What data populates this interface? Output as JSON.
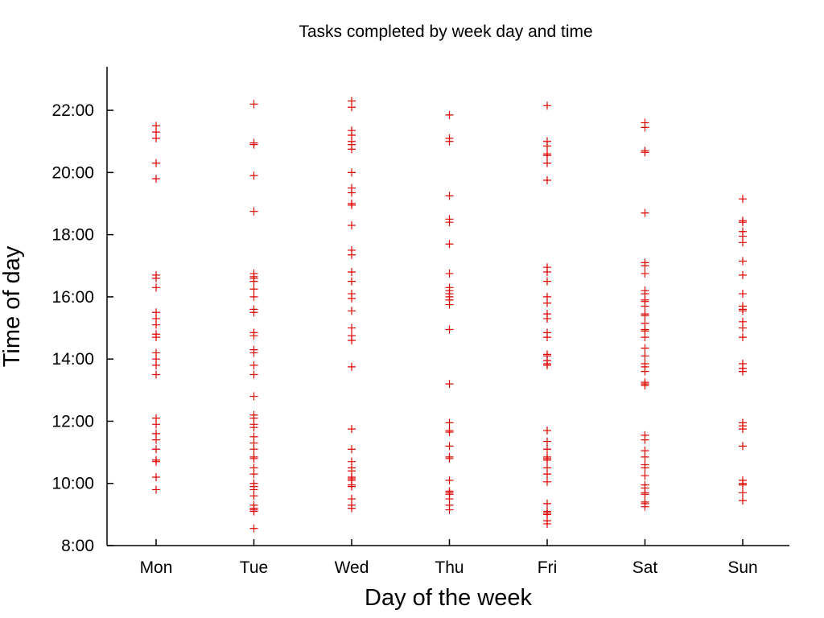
{
  "chart_data": {
    "type": "scatter",
    "title": "Tasks completed by week day and time",
    "xlabel": "Day of the week",
    "ylabel": "Time of day",
    "categories": [
      "Mon",
      "Tue",
      "Wed",
      "Thu",
      "Fri",
      "Sat",
      "Sun"
    ],
    "ylim": [
      8,
      23.4
    ],
    "y_ticks": [
      8,
      10,
      12,
      14,
      16,
      18,
      20,
      22
    ],
    "y_tick_labels": [
      "8:00",
      "10:00",
      "12:00",
      "14:00",
      "16:00",
      "18:00",
      "20:00",
      "22:00"
    ],
    "grid": false,
    "marker": "plus",
    "color": "#e00000",
    "points": [
      {
        "day": "Mon",
        "times": [
          21.5,
          21.3,
          21.1,
          20.3,
          19.8,
          16.7,
          16.6,
          16.3,
          15.5,
          15.3,
          15.1,
          14.8,
          14.7,
          14.2,
          14.0,
          13.8,
          13.5,
          12.1,
          11.9,
          11.6,
          11.4,
          11.1,
          10.75,
          10.7,
          10.2,
          9.8
        ]
      },
      {
        "day": "Tue",
        "times": [
          22.2,
          20.95,
          20.9,
          19.9,
          18.75,
          16.75,
          16.65,
          16.6,
          16.5,
          16.25,
          16.0,
          15.6,
          15.5,
          14.85,
          14.75,
          14.3,
          14.2,
          13.8,
          13.5,
          12.8,
          12.2,
          12.1,
          11.9,
          11.8,
          11.5,
          11.3,
          11.1,
          10.85,
          10.8,
          10.5,
          10.3,
          10.0,
          9.9,
          9.8,
          9.6,
          9.3,
          9.2,
          9.15,
          9.1,
          8.55
        ]
      },
      {
        "day": "Wed",
        "times": [
          22.3,
          22.1,
          21.35,
          21.2,
          21.0,
          20.9,
          20.75,
          20.0,
          19.5,
          19.35,
          19.0,
          18.95,
          18.3,
          17.5,
          17.35,
          16.8,
          16.5,
          16.1,
          15.95,
          15.55,
          15.0,
          14.75,
          14.6,
          13.75,
          11.75,
          11.1,
          10.7,
          10.5,
          10.4,
          10.2,
          10.15,
          10.1,
          9.95,
          9.9,
          9.5,
          9.3,
          9.2
        ]
      },
      {
        "day": "Thu",
        "times": [
          21.85,
          21.1,
          21.0,
          19.25,
          18.5,
          18.4,
          17.7,
          16.75,
          16.3,
          16.2,
          16.1,
          16.0,
          15.9,
          15.75,
          14.95,
          13.2,
          11.95,
          11.7,
          11.65,
          11.2,
          10.85,
          10.8,
          10.1,
          9.75,
          9.7,
          9.65,
          9.5,
          9.3,
          9.15
        ]
      },
      {
        "day": "Fri",
        "times": [
          22.15,
          21.0,
          20.85,
          20.6,
          20.55,
          20.3,
          19.75,
          16.95,
          16.8,
          16.5,
          16.0,
          15.8,
          15.45,
          15.3,
          14.85,
          14.7,
          14.15,
          14.1,
          13.95,
          13.85,
          13.8,
          11.7,
          11.35,
          11.1,
          10.85,
          10.8,
          10.75,
          10.5,
          10.3,
          10.05,
          9.35,
          9.1,
          9.05,
          9.0,
          8.8,
          8.7
        ]
      },
      {
        "day": "Sat",
        "times": [
          21.6,
          21.45,
          20.7,
          20.65,
          18.7,
          17.1,
          17.0,
          16.75,
          16.2,
          16.1,
          15.9,
          15.85,
          15.7,
          15.45,
          15.4,
          15.15,
          14.95,
          14.9,
          14.7,
          14.35,
          14.1,
          13.85,
          13.75,
          13.6,
          13.25,
          13.2,
          13.15,
          11.55,
          11.4,
          11.05,
          10.85,
          10.6,
          10.5,
          10.25,
          9.95,
          9.85,
          9.7,
          9.65,
          9.4,
          9.35,
          9.25
        ]
      },
      {
        "day": "Sun",
        "times": [
          19.15,
          18.45,
          18.4,
          18.1,
          17.95,
          17.75,
          17.15,
          16.7,
          16.1,
          15.7,
          15.6,
          15.55,
          15.2,
          15.0,
          14.7,
          13.85,
          13.7,
          13.6,
          11.95,
          11.85,
          11.75,
          11.2,
          10.1,
          10.0,
          9.95,
          9.7,
          9.45
        ]
      }
    ]
  }
}
